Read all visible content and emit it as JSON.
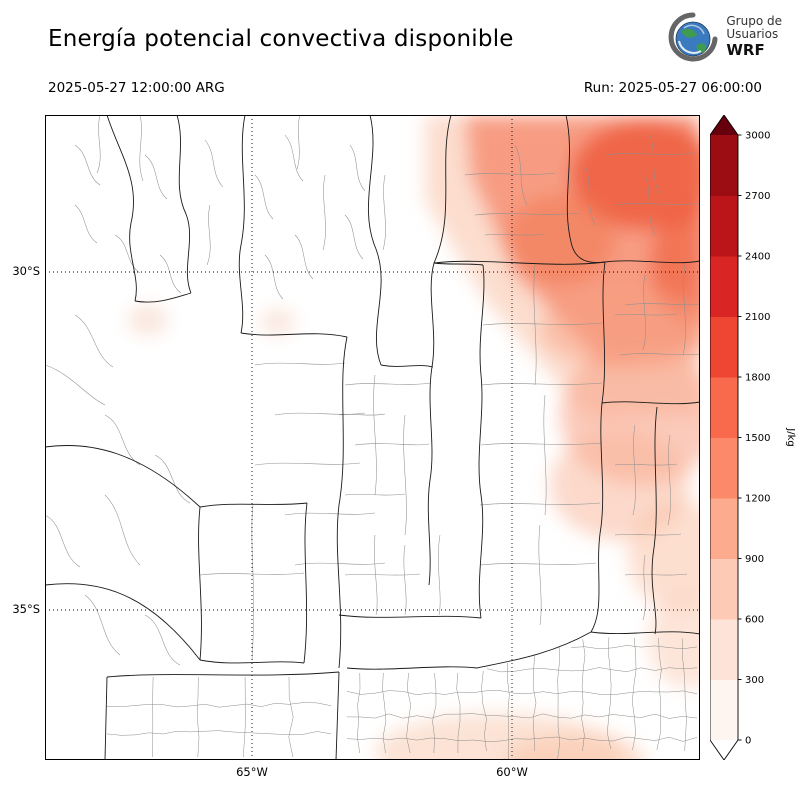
{
  "header": {
    "title": "Energía potencial convectiva disponible",
    "valid_time": "2025-05-27 12:00:00 ARG",
    "run_label": "Run: 2025-05-27 06:00:00",
    "logo": {
      "line1": "Grupo de",
      "line2": "Usuarios",
      "line3": "WRF"
    }
  },
  "map": {
    "lat_labels": [
      "30°S",
      "35°S"
    ],
    "lon_labels": [
      "65°W",
      "60°W"
    ]
  },
  "colorbar": {
    "unit": "J/kg",
    "ticks_top_to_bottom": [
      "3000",
      "2700",
      "2400",
      "2100",
      "1800",
      "1500",
      "1200",
      "900",
      "600",
      "300",
      "0"
    ],
    "colors_bottom_to_top": [
      "#fff5f0",
      "#fee4d8",
      "#fdcab5",
      "#fcab8f",
      "#fc8a6a",
      "#f9694c",
      "#ef4533",
      "#d92523",
      "#bb151a",
      "#9b0c13"
    ],
    "over_color": "#67000d",
    "under_color": "#ffffff"
  }
}
